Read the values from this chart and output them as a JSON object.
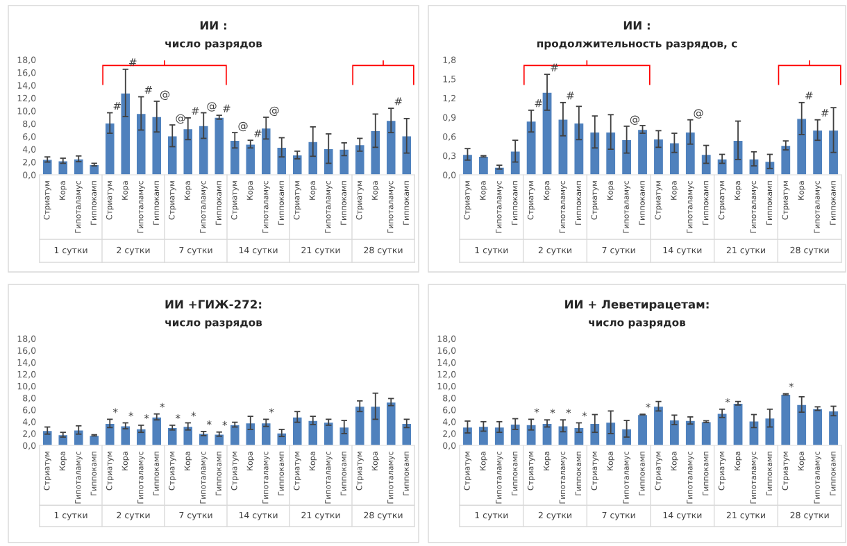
{
  "chart_data": [
    {
      "type": "bar",
      "title": "ИИ :",
      "subtitle": "число разрядов",
      "categories": [
        "Стриатум",
        "Кора",
        "Гипоталамус",
        "Гиппокамп",
        "Стриатум",
        "Кора",
        "Гипоталамус",
        "Гиппокамп",
        "Стриатум",
        "Кора",
        "Гипоталамус",
        "Гиппокамп",
        "Стриатум",
        "Кора",
        "Гипоталамус",
        "Гиппокамп",
        "Стриатум",
        "Кора",
        "Гипоталамус",
        "Гиппокамп",
        "Стриатум",
        "Кора",
        "Гипоталамус",
        "Гиппокамп"
      ],
      "annotations": [
        "1 сутки",
        "2 сутки",
        "7 сутки",
        "14 сутки",
        "21 сутки",
        "28 сутки"
      ],
      "series": [
        {
          "color": "#4f81bd",
          "values": [
            2.4,
            2.2,
            2.5,
            1.6,
            8.1,
            12.8,
            9.6,
            9.1,
            6.1,
            7.2,
            7.7,
            9.0,
            5.4,
            4.8,
            7.3,
            4.3,
            3.1,
            5.2,
            4.1,
            4.0,
            4.7,
            6.9,
            8.5,
            6.1
          ],
          "errors": [
            0.4,
            0.4,
            0.45,
            0.2,
            1.6,
            3.7,
            2.6,
            2.4,
            1.7,
            1.7,
            2.0,
            0.3,
            1.2,
            0.6,
            1.7,
            1.5,
            0.6,
            2.3,
            2.3,
            1.0,
            1.0,
            2.6,
            1.9,
            2.7
          ],
          "value_labels": [
            null,
            null,
            null,
            null,
            "#",
            "#",
            "#",
            "@",
            "@",
            "#",
            "@",
            "#",
            "@",
            "#",
            "@",
            null,
            null,
            null,
            null,
            null,
            null,
            null,
            "#",
            null
          ]
        }
      ],
      "ylim": [
        0,
        18
      ],
      "yticks": [
        {
          "value": 0,
          "label": "0,0"
        },
        {
          "value": 2,
          "label": "2,0"
        },
        {
          "value": 4,
          "label": "4,0"
        },
        {
          "value": 6,
          "label": "6,0"
        },
        {
          "value": 8,
          "label": "8,0"
        },
        {
          "value": 10,
          "label": "10,0"
        },
        {
          "value": 12,
          "label": "12,0"
        },
        {
          "value": 14,
          "label": "14,0"
        },
        {
          "value": 16,
          "label": "16,0"
        },
        {
          "value": 18,
          "label": "18,0"
        }
      ],
      "grid": false,
      "legend": false
    },
    {
      "type": "bar",
      "title": "ИИ :",
      "subtitle": "продолжительность разрядов, с",
      "categories": [
        "Стриатум",
        "Кора",
        "Гипоталамус",
        "Гиппокамп",
        "Стриатум",
        "Кора",
        "Гипоталамус",
        "Гиппокамп",
        "Стриатум",
        "Кора",
        "Гипоталамус",
        "Гиппокамп",
        "Стриатум",
        "Кора",
        "Гипоталамус",
        "Гиппокамп",
        "Стриатум",
        "Кора",
        "Гипоталамус",
        "Гиппокамп",
        "Стриатум",
        "Кора",
        "Гипоталамус",
        "Гиппокамп"
      ],
      "annotations": [
        "1 сутки",
        "2 сутки",
        "7 сутки",
        "14 сутки",
        "21 сутки",
        "28 сутки"
      ],
      "series": [
        {
          "color": "#4f81bd",
          "values": [
            0.32,
            0.29,
            0.12,
            0.37,
            0.84,
            1.29,
            0.87,
            0.81,
            0.67,
            0.67,
            0.55,
            0.71,
            0.56,
            0.5,
            0.67,
            0.32,
            0.25,
            0.54,
            0.25,
            0.21,
            0.46,
            0.88,
            0.7,
            0.7
          ],
          "errors": [
            0.09,
            0.01,
            0.03,
            0.17,
            0.17,
            0.28,
            0.26,
            0.26,
            0.25,
            0.27,
            0.21,
            0.06,
            0.13,
            0.15,
            0.19,
            0.14,
            0.07,
            0.3,
            0.11,
            0.11,
            0.07,
            0.25,
            0.16,
            0.35
          ],
          "value_labels": [
            null,
            null,
            null,
            null,
            "#",
            "#",
            "#",
            null,
            null,
            null,
            "@",
            null,
            null,
            null,
            "@",
            null,
            null,
            null,
            null,
            null,
            null,
            "#",
            "#",
            null
          ]
        }
      ],
      "ylim": [
        0,
        1.8
      ],
      "yticks": [
        {
          "value": 0,
          "label": "0,0"
        },
        {
          "value": 0.3,
          "label": "0,3"
        },
        {
          "value": 0.6,
          "label": "0,6"
        },
        {
          "value": 0.9,
          "label": "0,9"
        },
        {
          "value": 1.2,
          "label": "1,2"
        },
        {
          "value": 1.5,
          "label": "1,5"
        },
        {
          "value": 1.8,
          "label": "1,8"
        }
      ],
      "grid": false,
      "legend": false
    },
    {
      "type": "bar",
      "title": "ИИ +ГИЖ-272:",
      "subtitle": "число разрядов",
      "categories": [
        "Стриатум",
        "Кора",
        "Гипоталамус",
        "Гиппокамп",
        "Стриатум",
        "Кора",
        "Гипоталамус",
        "Гиппокамп",
        "Стриатум",
        "Кора",
        "Гипоталамус",
        "Гиппокамп",
        "Стриатум",
        "Кора",
        "Гипоталамус",
        "Гиппокамп",
        "Стриатум",
        "Кора",
        "Гипоталамус",
        "Гиппокамп",
        "Стриатум",
        "Кора",
        "Гипоталамус",
        "Гиппокамп"
      ],
      "annotations": [
        "1 сутки",
        "2 сутки",
        "7 сутки",
        "14 сутки",
        "21 сутки",
        "28 сутки"
      ],
      "series": [
        {
          "color": "#4f81bd",
          "values": [
            2.5,
            1.8,
            2.6,
            1.7,
            3.7,
            3.3,
            2.8,
            4.8,
            3.0,
            3.2,
            2.0,
            1.9,
            3.5,
            3.8,
            3.8,
            2.1,
            4.8,
            4.2,
            3.9,
            3.1,
            6.6,
            6.6,
            7.3,
            3.7
          ],
          "errors": [
            0.6,
            0.4,
            0.7,
            0.1,
            0.7,
            0.5,
            0.6,
            0.5,
            0.4,
            0.6,
            0.35,
            0.35,
            0.4,
            1.1,
            0.6,
            0.6,
            0.9,
            0.7,
            0.5,
            1.1,
            0.9,
            2.2,
            0.6,
            0.7
          ],
          "value_labels": [
            null,
            null,
            null,
            null,
            "*",
            "*",
            "*",
            "*",
            "*",
            "*",
            "*",
            "*",
            null,
            null,
            "*",
            null,
            null,
            null,
            null,
            null,
            null,
            null,
            null,
            null
          ]
        }
      ],
      "ylim": [
        0,
        18
      ],
      "yticks": [
        {
          "value": 0,
          "label": "0,0"
        },
        {
          "value": 2,
          "label": "2,0"
        },
        {
          "value": 4,
          "label": "4,0"
        },
        {
          "value": 6,
          "label": "6,0"
        },
        {
          "value": 8,
          "label": "8,0"
        },
        {
          "value": 10,
          "label": "10,0"
        },
        {
          "value": 12,
          "label": "12,0"
        },
        {
          "value": 14,
          "label": "14,0"
        },
        {
          "value": 16,
          "label": "16,0"
        },
        {
          "value": 18,
          "label": "18,0"
        }
      ],
      "grid": false,
      "legend": false
    },
    {
      "type": "bar",
      "title": "ИИ + Леветирацетам:",
      "subtitle": "число разрядов",
      "categories": [
        "Стриатум",
        "Кора",
        "Гипоталамус",
        "Гиппокамп",
        "Стриатум",
        "Кора",
        "Гипоталамус",
        "Гиппокамп",
        "Стриатум",
        "Кора",
        "Гипоталамус",
        "Гиппокамп",
        "Стриатум",
        "Кора",
        "Гипоталамус",
        "Гиппокамп",
        "Стриатум",
        "Кора",
        "Гипоталамус",
        "Гиппокамп",
        "Стриатум",
        "Кора",
        "Гипоталамус",
        "Гиппокамп"
      ],
      "annotations": [
        "1 сутки",
        "2 сутки",
        "7 сутки",
        "14 сутки",
        "21 сутки",
        "28 сутки"
      ],
      "series": [
        {
          "color": "#4f81bd",
          "values": [
            3.1,
            3.2,
            3.1,
            3.6,
            3.5,
            3.7,
            3.3,
            3.0,
            3.7,
            3.9,
            2.8,
            5.2,
            6.6,
            4.3,
            4.2,
            4.0,
            5.4,
            7.1,
            4.1,
            4.6,
            8.6,
            6.9,
            6.2,
            5.8
          ],
          "errors": [
            1.0,
            0.8,
            0.9,
            0.9,
            0.9,
            0.6,
            1.0,
            0.8,
            1.5,
            1.9,
            1.4,
            0.05,
            0.8,
            0.8,
            0.6,
            0.15,
            0.7,
            0.3,
            1.1,
            1.5,
            0.1,
            1.3,
            0.3,
            0.8
          ],
          "value_labels": [
            null,
            null,
            null,
            null,
            "*",
            "*",
            "*",
            "*",
            null,
            null,
            null,
            "*",
            null,
            null,
            null,
            null,
            "*",
            null,
            null,
            null,
            "*",
            null,
            null,
            null
          ]
        }
      ],
      "ylim": [
        0,
        18
      ],
      "yticks": [
        {
          "value": 0,
          "label": "0,0"
        },
        {
          "value": 2,
          "label": "2,0"
        },
        {
          "value": 4,
          "label": "4,0"
        },
        {
          "value": 6,
          "label": "6,0"
        },
        {
          "value": 8,
          "label": "8,0"
        },
        {
          "value": 10,
          "label": "10,0"
        },
        {
          "value": 12,
          "label": "12,0"
        },
        {
          "value": 14,
          "label": "14,0"
        },
        {
          "value": 16,
          "label": "16,0"
        },
        {
          "value": 18,
          "label": "18,0"
        }
      ],
      "grid": false,
      "legend": false
    }
  ]
}
